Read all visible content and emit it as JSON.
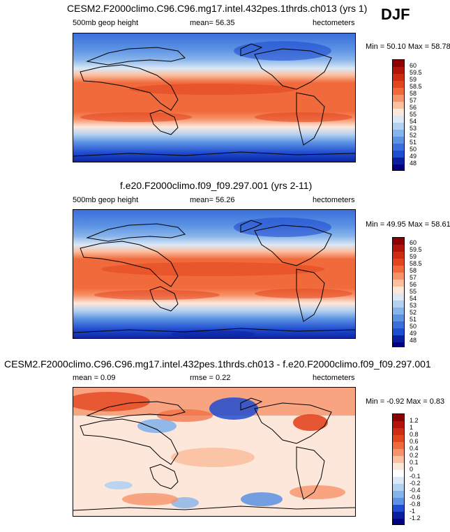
{
  "season": "DJF",
  "panels": [
    {
      "title": "CESM2.F2000climo.C96.C96.mg17.intel.432pes.1thrds.ch013 (yrs 1)",
      "left_label": "500mb geop height",
      "center_label": "mean=  56.35",
      "right_label": "hectometers",
      "stats": "Min =  50.10 Max =  58.78",
      "colorbar": {
        "levels": [
          "60",
          "59.5",
          "59",
          "58.5",
          "58",
          "57",
          "56",
          "55",
          "54",
          "53",
          "52",
          "51",
          "50",
          "49",
          "48"
        ],
        "colors": [
          "#8b0000",
          "#b0150b",
          "#cf2a14",
          "#e3461f",
          "#f06a3c",
          "#f7936a",
          "#fcc0a1",
          "#fde7db",
          "#dbe8f7",
          "#b2d0f0",
          "#86b3ea",
          "#5b92e3",
          "#3a6fdb",
          "#1f4cd0",
          "#0b1f9e",
          "#000080"
        ]
      }
    },
    {
      "title": "f.e20.F2000climo.f09_f09.297.001 (yrs 2-11)",
      "left_label": "500mb geop height",
      "center_label": "mean=  56.26",
      "right_label": "hectometers",
      "stats": "Min =  49.95 Max =  58.61",
      "colorbar": {
        "levels": [
          "60",
          "59.5",
          "59",
          "58.5",
          "58",
          "57",
          "56",
          "55",
          "54",
          "53",
          "52",
          "51",
          "50",
          "49",
          "48"
        ],
        "colors": [
          "#8b0000",
          "#b0150b",
          "#cf2a14",
          "#e3461f",
          "#f06a3c",
          "#f7936a",
          "#fcc0a1",
          "#fde7db",
          "#dbe8f7",
          "#b2d0f0",
          "#86b3ea",
          "#5b92e3",
          "#3a6fdb",
          "#1f4cd0",
          "#0b1f9e",
          "#000080"
        ]
      }
    },
    {
      "title": "CESM2.F2000climo.C96.C96.mg17.intel.432pes.1thrds.ch013 - f.e20.F2000climo.f09_f09.297.001",
      "left_label": "mean =   0.09",
      "center_label": "rmse =   0.22",
      "right_label": "hectometers",
      "stats": "Min = -0.92 Max =  0.83",
      "colorbar": {
        "levels": [
          "1.2",
          "1",
          "0.8",
          "0.6",
          "0.4",
          "0.2",
          "0.1",
          "0",
          "-0.1",
          "-0.2",
          "-0.4",
          "-0.6",
          "-0.8",
          "-1",
          "-1.2"
        ],
        "colors": [
          "#8b0000",
          "#b0150b",
          "#cf2a14",
          "#e3461f",
          "#f06a3c",
          "#f7936a",
          "#fcc0a1",
          "#fde7db",
          "#ffffff",
          "#dbe8f7",
          "#b2d0f0",
          "#86b3ea",
          "#5b92e3",
          "#1f4cd0",
          "#0b1f9e",
          "#000080"
        ]
      }
    }
  ]
}
